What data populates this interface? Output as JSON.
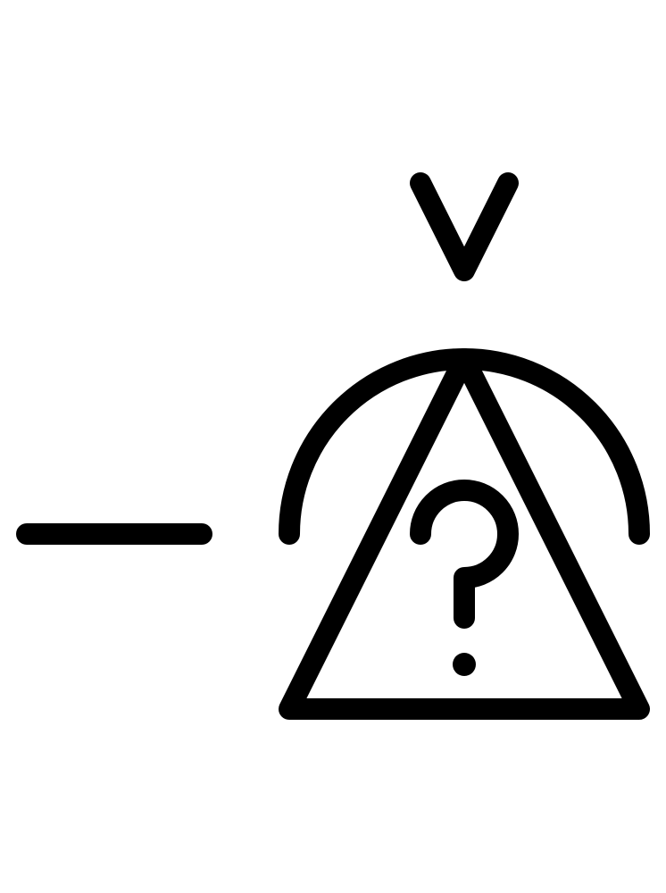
{
  "symbol": {
    "icon_name": "warning-triangle-question-icon",
    "stroke_color": "#000000",
    "background_color": "#ffffff",
    "elements": [
      "dash-line",
      "chevron-down-mark",
      "semicircle-arc",
      "warning-triangle",
      "question-mark"
    ]
  }
}
